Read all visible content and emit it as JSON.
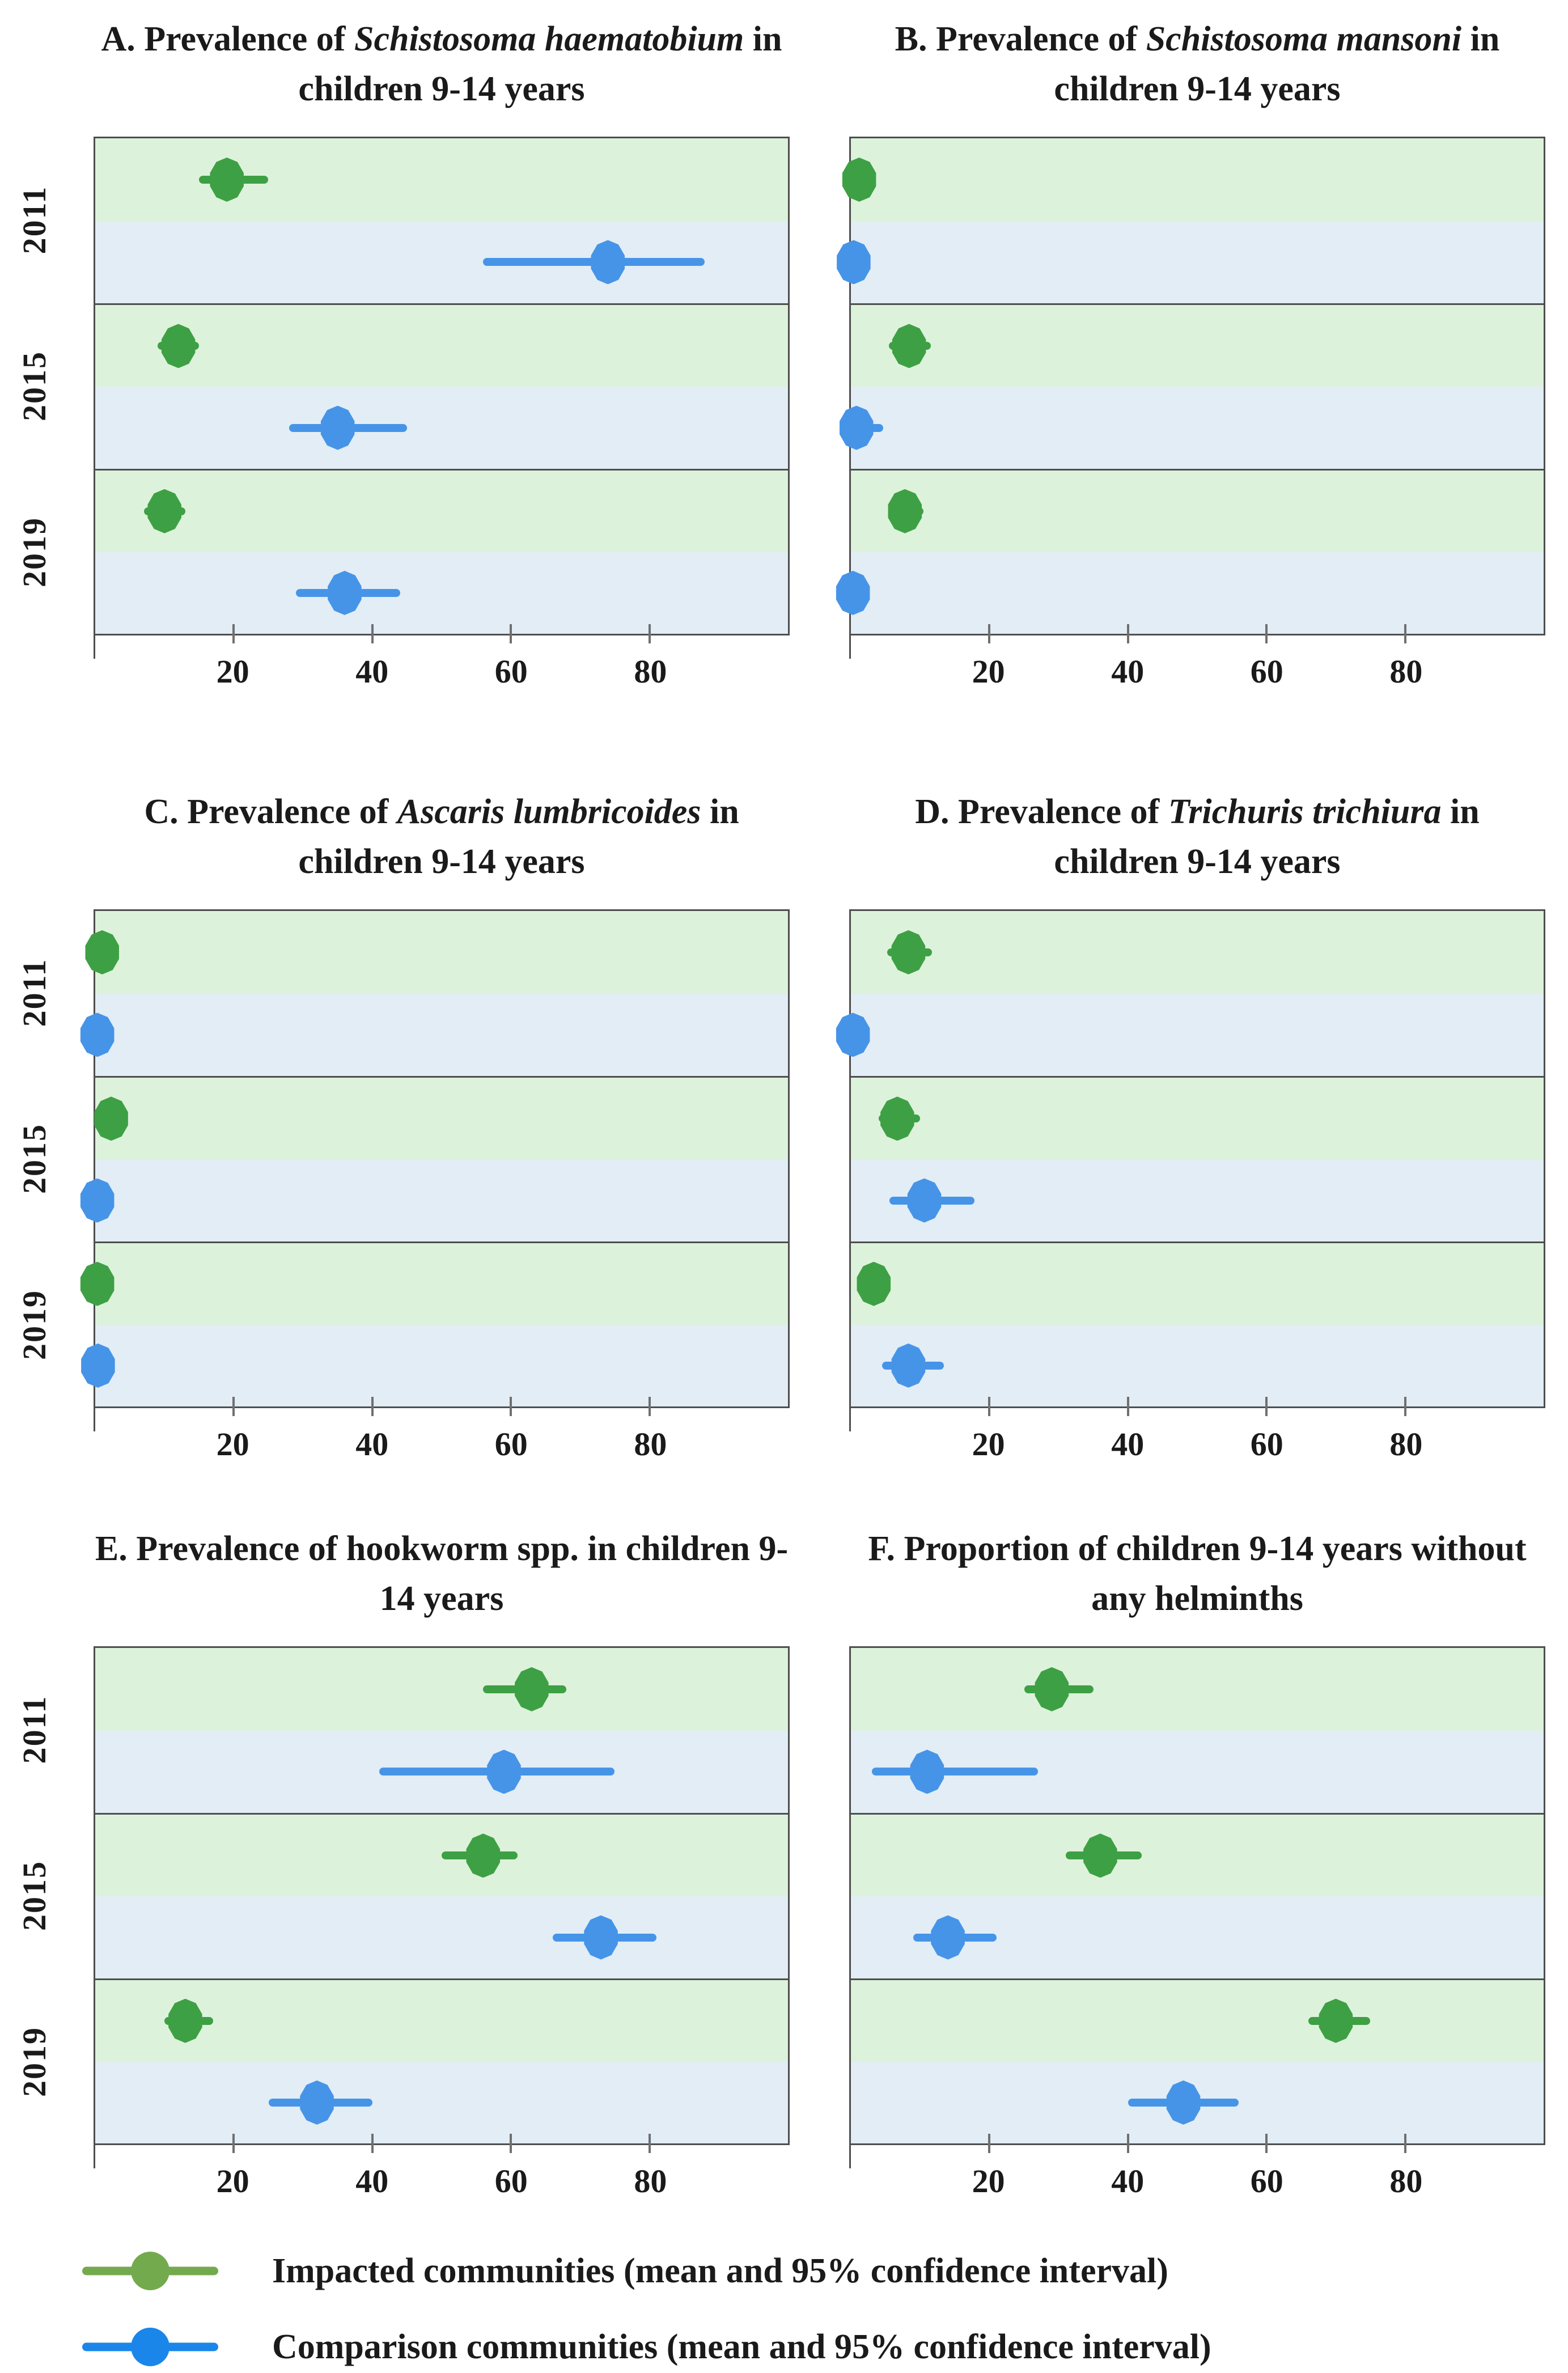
{
  "figure": {
    "axis": {
      "min": 0,
      "max": 100,
      "ticks": [
        20,
        40,
        60,
        80
      ]
    },
    "years": [
      "2011",
      "2015",
      "2019"
    ],
    "groups": [
      {
        "key": "impacted",
        "label": "Impacted communities (mean and 95% confidence interval)",
        "color": "#3ea044",
        "band_color": "#ddf2db",
        "legend_color": "#74aa4e"
      },
      {
        "key": "comparison",
        "label": "Comparison communities (mean and 95% confidence interval)",
        "color": "#4694e8",
        "band_color": "#e2edf6",
        "legend_color": "#1b86ea"
      }
    ],
    "border_color": "#4e4e4e"
  },
  "chart_data": [
    {
      "type": "scatter",
      "panel": "A",
      "title": "A. Prevalence of Schistosoma haematobium in children 9-14 years",
      "title_parts": [
        {
          "text": "A. Prevalence of ",
          "italic": false
        },
        {
          "text": "Schistosoma haematobium",
          "italic": true
        },
        {
          "text": " in children 9-14 years",
          "italic": false
        }
      ],
      "categories": [
        "2011",
        "2015",
        "2019"
      ],
      "xlim": [
        0,
        100
      ],
      "xticks": [
        20,
        40,
        60,
        80
      ],
      "grid": false,
      "legend_position": "bottom",
      "series": [
        {
          "name": "Impacted communities",
          "means": [
            19,
            12,
            10
          ],
          "ci_low": [
            15,
            9,
            7
          ],
          "ci_high": [
            25,
            15,
            13
          ]
        },
        {
          "name": "Comparison communities",
          "means": [
            74,
            35,
            36
          ],
          "ci_low": [
            56,
            28,
            29
          ],
          "ci_high": [
            88,
            45,
            44
          ]
        }
      ]
    },
    {
      "type": "scatter",
      "panel": "B",
      "title": "B. Prevalence of Schistosoma mansoni in children 9-14 years",
      "title_parts": [
        {
          "text": "B. Prevalence of ",
          "italic": false
        },
        {
          "text": "Schistosoma mansoni",
          "italic": true
        },
        {
          "text": " in children 9-14 years",
          "italic": false
        }
      ],
      "categories": [
        "2011",
        "2015",
        "2019"
      ],
      "xlim": [
        0,
        100
      ],
      "xticks": [
        20,
        40,
        60,
        80
      ],
      "grid": false,
      "legend_position": "bottom",
      "series": [
        {
          "name": "Impacted communities",
          "means": [
            1.2,
            8.4,
            7.8
          ],
          "ci_low": [
            0.4,
            5.5,
            5.5
          ],
          "ci_high": [
            2.2,
            11.5,
            10.5
          ]
        },
        {
          "name": "Comparison communities",
          "means": [
            0.4,
            0.8,
            0.3
          ],
          "ci_low": [
            0,
            0,
            0
          ],
          "ci_high": [
            1.2,
            4.7,
            1.2
          ]
        }
      ]
    },
    {
      "type": "scatter",
      "panel": "C",
      "title": "C. Prevalence of Ascaris lumbricoides in children 9-14 years",
      "title_parts": [
        {
          "text": "C. Prevalence of ",
          "italic": false
        },
        {
          "text": "Ascaris lumbricoides",
          "italic": true
        },
        {
          "text": " in children 9-14 years",
          "italic": false
        }
      ],
      "categories": [
        "2011",
        "2015",
        "2019"
      ],
      "xlim": [
        0,
        100
      ],
      "xticks": [
        20,
        40,
        60,
        80
      ],
      "grid": false,
      "legend_position": "bottom",
      "series": [
        {
          "name": "Impacted communities",
          "means": [
            1.0,
            2.3,
            0.3
          ],
          "ci_low": [
            0.4,
            1.3,
            0
          ],
          "ci_high": [
            2.0,
            3.6,
            0.9
          ]
        },
        {
          "name": "Comparison communities",
          "means": [
            0.3,
            0.3,
            0.4
          ],
          "ci_low": [
            0,
            0,
            0
          ],
          "ci_high": [
            1.0,
            1.0,
            1.1
          ]
        }
      ]
    },
    {
      "type": "scatter",
      "panel": "D",
      "title": "D. Prevalence of Trichuris trichiura in children 9-14 years",
      "title_parts": [
        {
          "text": "D. Prevalence of ",
          "italic": false
        },
        {
          "text": "Trichuris trichiura",
          "italic": true
        },
        {
          "text": " in children 9-14 years",
          "italic": false
        }
      ],
      "categories": [
        "2011",
        "2015",
        "2019"
      ],
      "xlim": [
        0,
        100
      ],
      "xticks": [
        20,
        40,
        60,
        80
      ],
      "grid": false,
      "legend_position": "bottom",
      "series": [
        {
          "name": "Impacted communities",
          "means": [
            8.3,
            6.7,
            3.3
          ],
          "ci_low": [
            5.2,
            4.0,
            2.0
          ],
          "ci_high": [
            11.7,
            10.0,
            5.0
          ]
        },
        {
          "name": "Comparison communities",
          "means": [
            0.3,
            10.6,
            8.3
          ],
          "ci_low": [
            0,
            5.6,
            4.5
          ],
          "ci_high": [
            1.1,
            17.8,
            13.4
          ]
        }
      ]
    },
    {
      "type": "scatter",
      "panel": "E",
      "title": "E. Prevalence of hookworm spp. in children 9-14 years",
      "title_parts": [
        {
          "text": "E. Prevalence of hookworm spp. in children 9-14 years",
          "italic": false
        }
      ],
      "categories": [
        "2011",
        "2015",
        "2019"
      ],
      "xlim": [
        0,
        100
      ],
      "xticks": [
        20,
        40,
        60,
        80
      ],
      "grid": false,
      "legend_position": "bottom",
      "series": [
        {
          "name": "Impacted communities",
          "means": [
            63,
            56,
            13
          ],
          "ci_low": [
            56,
            50,
            10
          ],
          "ci_high": [
            68,
            61,
            17
          ]
        },
        {
          "name": "Comparison communities",
          "means": [
            59,
            73,
            32
          ],
          "ci_low": [
            41,
            66,
            25
          ],
          "ci_high": [
            75,
            81,
            40
          ]
        }
      ]
    },
    {
      "type": "scatter",
      "panel": "F",
      "title": "F. Proportion of children 9-14 years without any helminths",
      "title_parts": [
        {
          "text": "F. Proportion of children 9-14 years without any helminths",
          "italic": false
        }
      ],
      "categories": [
        "2011",
        "2015",
        "2019"
      ],
      "xlim": [
        0,
        100
      ],
      "xticks": [
        20,
        40,
        60,
        80
      ],
      "grid": false,
      "legend_position": "bottom",
      "series": [
        {
          "name": "Impacted communities",
          "means": [
            29,
            36,
            70
          ],
          "ci_low": [
            25,
            31,
            66
          ],
          "ci_high": [
            35,
            42,
            75
          ]
        },
        {
          "name": "Comparison communities",
          "means": [
            11,
            14,
            48
          ],
          "ci_low": [
            3,
            9,
            40
          ],
          "ci_high": [
            27,
            21,
            56
          ]
        }
      ]
    }
  ]
}
